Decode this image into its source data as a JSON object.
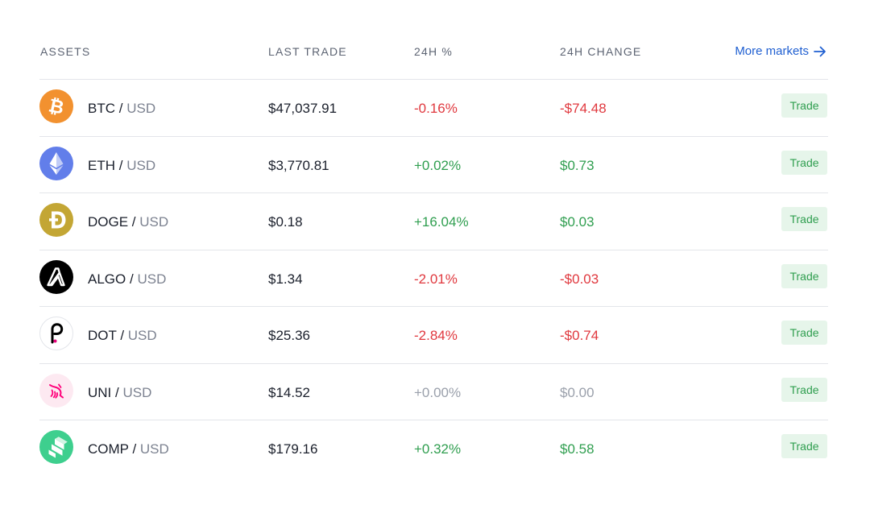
{
  "header": {
    "assets": "ASSETS",
    "last_trade": "LAST TRADE",
    "pct": "24H %",
    "change": "24H CHANGE",
    "more_markets": "More markets"
  },
  "rows": [
    {
      "symbol": "BTC",
      "separator": "/",
      "quote": "USD",
      "price": "$47,037.91",
      "pct": "-0.16%",
      "change": "-$74.48",
      "trend": "negative",
      "trade": "Trade",
      "icon": "bitcoin-icon",
      "icon_color": "#f2912f"
    },
    {
      "symbol": "ETH",
      "separator": "/",
      "quote": "USD",
      "price": "$3,770.81",
      "pct": "+0.02%",
      "change": "$0.73",
      "trend": "positive",
      "trade": "Trade",
      "icon": "ethereum-icon",
      "icon_color": "#627eea"
    },
    {
      "symbol": "DOGE",
      "separator": "/",
      "quote": "USD",
      "price": "$0.18",
      "pct": "+16.04%",
      "change": "$0.03",
      "trend": "positive",
      "trade": "Trade",
      "icon": "dogecoin-icon",
      "icon_color": "#c3a634"
    },
    {
      "symbol": "ALGO",
      "separator": "/",
      "quote": "USD",
      "price": "$1.34",
      "pct": "-2.01%",
      "change": "-$0.03",
      "trend": "negative",
      "trade": "Trade",
      "icon": "algorand-icon",
      "icon_color": "#000000"
    },
    {
      "symbol": "DOT",
      "separator": "/",
      "quote": "USD",
      "price": "$25.36",
      "pct": "-2.84%",
      "change": "-$0.74",
      "trend": "negative",
      "trade": "Trade",
      "icon": "polkadot-icon",
      "icon_color": "#e6007a"
    },
    {
      "symbol": "UNI",
      "separator": "/",
      "quote": "USD",
      "price": "$14.52",
      "pct": "+0.00%",
      "change": "$0.00",
      "trend": "neutral",
      "trade": "Trade",
      "icon": "uniswap-icon",
      "icon_color": "#ff007a"
    },
    {
      "symbol": "COMP",
      "separator": "/",
      "quote": "USD",
      "price": "$179.16",
      "pct": "+0.32%",
      "change": "$0.58",
      "trend": "positive",
      "trade": "Trade",
      "icon": "compound-icon",
      "icon_color": "#3ecf8e"
    }
  ],
  "colors": {
    "negative": "#e0383e",
    "positive": "#2f9e4f",
    "neutral": "#9aa0ab",
    "link": "#1f5fd1",
    "trade_bg": "#e6f5ea"
  }
}
